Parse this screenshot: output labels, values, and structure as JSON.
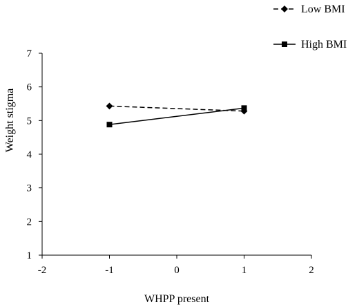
{
  "chart_data": {
    "type": "line",
    "xlabel": "WHPP present",
    "ylabel": "Weight stigma",
    "xlim": [
      -2,
      2
    ],
    "ylim": [
      1,
      7
    ],
    "x_ticks": [
      -2,
      -1,
      0,
      1,
      2
    ],
    "y_ticks": [
      1,
      2,
      3,
      4,
      5,
      6,
      7
    ],
    "x_tick_labels": [
      "-2",
      "-1",
      "0",
      "1",
      "2"
    ],
    "y_tick_labels": [
      "1",
      "2",
      "3",
      "4",
      "5",
      "6",
      "7"
    ],
    "grid": false,
    "legend_position": "top-right",
    "series": [
      {
        "name": "Low BMI",
        "line_style": "dashed",
        "marker": "diamond",
        "color": "#000000",
        "x": [
          -1,
          1
        ],
        "y": [
          5.43,
          5.28
        ]
      },
      {
        "name": "High BMI",
        "line_style": "solid",
        "marker": "square",
        "color": "#000000",
        "x": [
          -1,
          1
        ],
        "y": [
          4.88,
          5.37
        ]
      }
    ]
  }
}
